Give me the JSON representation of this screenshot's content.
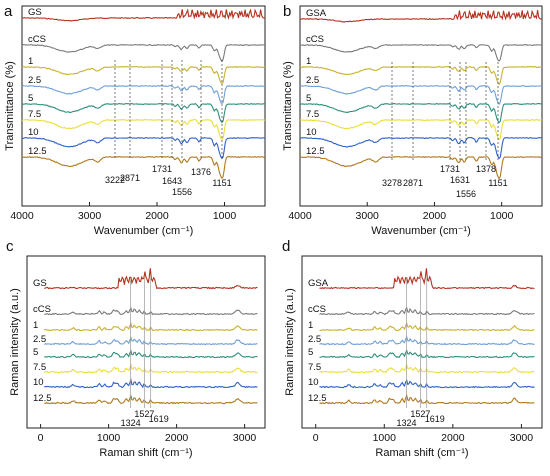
{
  "chart_data": [
    {
      "panel": "a",
      "type": "line",
      "title": "",
      "xlabel": "Wavenumber (cm⁻¹)",
      "ylabel": "Transmittance (%)",
      "xlim": [
        4000,
        400
      ],
      "x_reversed": true,
      "xticks": [
        "4000",
        "3000",
        "2000",
        "1000"
      ],
      "grid": false,
      "series": [
        {
          "name": "GS",
          "color": "#b5311f"
        },
        {
          "name": "cCS",
          "color": "#7a7a7a"
        },
        {
          "name": "1",
          "color": "#c9b22e"
        },
        {
          "name": "2.5",
          "color": "#6f9fd8"
        },
        {
          "name": "5",
          "color": "#2f8f7a"
        },
        {
          "name": "7.5",
          "color": "#e9df3a"
        },
        {
          "name": "10",
          "color": "#2f62c9"
        },
        {
          "name": "12.5",
          "color": "#b07a1d"
        }
      ],
      "annotations": [
        "3222",
        "2871",
        "1731",
        "1643",
        "1556",
        "1376",
        "1151"
      ]
    },
    {
      "panel": "b",
      "type": "line",
      "title": "",
      "xlabel": "Wavenumber (cm⁻¹)",
      "ylabel": "Transmittance (%)",
      "xlim": [
        4000,
        400
      ],
      "x_reversed": true,
      "xticks": [
        "4000",
        "3000",
        "2000",
        "1000"
      ],
      "grid": false,
      "series": [
        {
          "name": "GSA",
          "color": "#b5311f"
        },
        {
          "name": "cCS",
          "color": "#7a7a7a"
        },
        {
          "name": "1",
          "color": "#c9b22e"
        },
        {
          "name": "2.5",
          "color": "#6f9fd8"
        },
        {
          "name": "5",
          "color": "#2f8f7a"
        },
        {
          "name": "7.5",
          "color": "#e9df3a"
        },
        {
          "name": "10",
          "color": "#2f62c9"
        },
        {
          "name": "12.5",
          "color": "#b07a1d"
        }
      ],
      "annotations": [
        "3278",
        "2871",
        "1731",
        "1631",
        "1556",
        "1378",
        "1151"
      ]
    },
    {
      "panel": "c",
      "type": "line",
      "title": "",
      "xlabel": "Raman shift (cm⁻¹)",
      "ylabel": "Raman intensity (a.u.)",
      "xlim": [
        -200,
        3300
      ],
      "xticks": [
        "0",
        "1000",
        "2000",
        "3000"
      ],
      "grid": false,
      "series": [
        {
          "name": "GS",
          "color": "#b5311f"
        },
        {
          "name": "cCS",
          "color": "#7a7a7a"
        },
        {
          "name": "1",
          "color": "#c9b22e"
        },
        {
          "name": "2.5",
          "color": "#6f9fd8"
        },
        {
          "name": "5",
          "color": "#2f8f7a"
        },
        {
          "name": "7.5",
          "color": "#e9df3a"
        },
        {
          "name": "10",
          "color": "#2f62c9"
        },
        {
          "name": "12.5",
          "color": "#b07a1d"
        }
      ],
      "annotations": [
        "1527",
        "1324",
        "1619"
      ]
    },
    {
      "panel": "d",
      "type": "line",
      "title": "",
      "xlabel": "Raman shift (cm⁻¹)",
      "ylabel": "Raman intensity (a.u.)",
      "xlim": [
        -200,
        3300
      ],
      "xticks": [
        "0",
        "1000",
        "2000",
        "3000"
      ],
      "grid": false,
      "series": [
        {
          "name": "GSA",
          "color": "#b5311f"
        },
        {
          "name": "cCS",
          "color": "#7a7a7a"
        },
        {
          "name": "1",
          "color": "#c9b22e"
        },
        {
          "name": "2.5",
          "color": "#6f9fd8"
        },
        {
          "name": "5",
          "color": "#2f8f7a"
        },
        {
          "name": "7.5",
          "color": "#e9df3a"
        },
        {
          "name": "10",
          "color": "#2f62c9"
        },
        {
          "name": "12.5",
          "color": "#b07a1d"
        }
      ],
      "annotations": [
        "1527",
        "1324",
        "1619"
      ]
    }
  ]
}
